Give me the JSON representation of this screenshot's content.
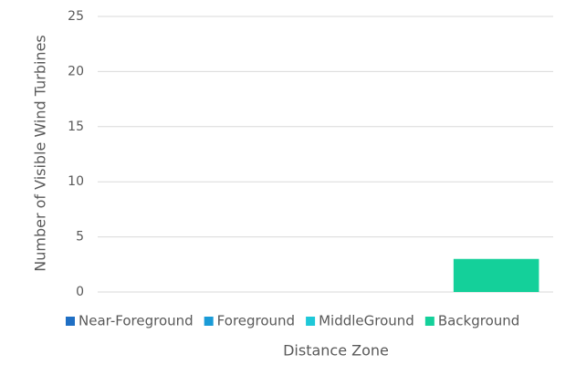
{
  "chart_data": {
    "type": "bar",
    "ylabel": "Number of Visible Wind Turbines",
    "xlabel": "Distance Zone",
    "categories": [
      null
    ],
    "series": [
      {
        "name": "Near-Foreground",
        "color": "#1f6fc4",
        "values": [
          0
        ]
      },
      {
        "name": "Foreground",
        "color": "#1a9bd7",
        "values": [
          0
        ]
      },
      {
        "name": "MiddleGround",
        "color": "#1ec8d8",
        "values": [
          0
        ]
      },
      {
        "name": "Background",
        "color": "#14d09a",
        "values": [
          3
        ]
      }
    ],
    "ylim": [
      0,
      25
    ],
    "yticks": [
      0,
      5,
      10,
      15,
      20,
      25
    ],
    "grid": true,
    "legend": "bottom"
  }
}
